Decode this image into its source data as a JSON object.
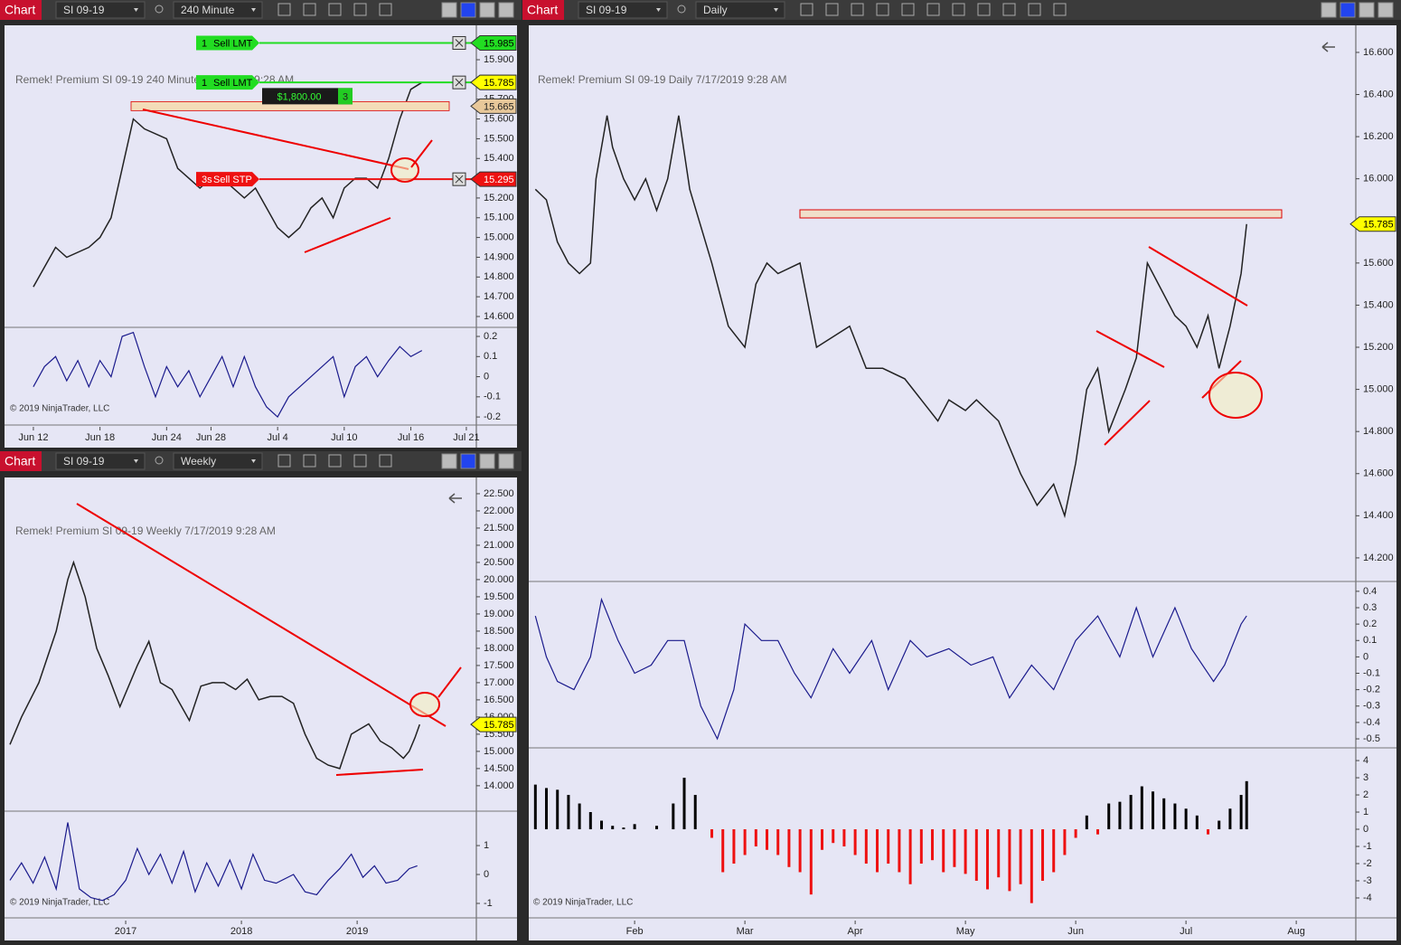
{
  "toolbars": [
    {
      "label": "Chart",
      "instrument": "SI 09-19",
      "interval": "240 Minute"
    },
    {
      "label": "Chart",
      "instrument": "SI 09-19",
      "interval": "Weekly"
    },
    {
      "label": "Chart",
      "instrument": "SI 09-19",
      "interval": "Daily"
    }
  ],
  "chart_data": [
    {
      "type": "line",
      "watermark": "Remek!  Premium  SI 09-19  240 Minute  7/17/2019 9:28 AM",
      "copyright": "© 2019 NinjaTrader, LLC",
      "color": "#222222",
      "x": [
        12,
        13,
        14,
        15,
        17,
        18,
        19,
        20,
        21,
        22,
        24,
        25,
        26,
        27,
        28,
        29,
        31,
        32,
        33,
        34,
        35,
        36,
        37,
        38,
        39,
        40,
        41,
        42,
        43,
        44,
        45,
        46,
        47
      ],
      "values": [
        14.75,
        14.85,
        14.95,
        14.9,
        14.95,
        15.0,
        15.1,
        15.35,
        15.6,
        15.55,
        15.5,
        15.35,
        15.3,
        15.25,
        15.3,
        15.3,
        15.2,
        15.25,
        15.15,
        15.05,
        15.0,
        15.05,
        15.15,
        15.2,
        15.1,
        15.25,
        15.3,
        15.3,
        15.25,
        15.4,
        15.6,
        15.75,
        15.785
      ],
      "xlim": [
        9.4,
        51.9
      ],
      "xticks": [
        {
          "value": 12,
          "label": "Jun 12"
        },
        {
          "value": 18,
          "label": "Jun 18"
        },
        {
          "value": 24,
          "label": "Jun 24"
        },
        {
          "value": 28,
          "label": "Jun 28"
        },
        {
          "value": 34,
          "label": "Jul 4"
        },
        {
          "value": 40,
          "label": "Jul 10"
        },
        {
          "value": 46,
          "label": "Jul 16"
        },
        {
          "value": 51,
          "label": "Jul 21"
        }
      ],
      "ylim": [
        14.545,
        16.065
      ],
      "yticks": [
        {
          "value": 14.6,
          "label": "14.600"
        },
        {
          "value": 14.7,
          "label": "14.700"
        },
        {
          "value": 14.8,
          "label": "14.800"
        },
        {
          "value": 14.9,
          "label": "14.900"
        },
        {
          "value": 15.0,
          "label": "15.000"
        },
        {
          "value": 15.1,
          "label": "15.100"
        },
        {
          "value": 15.2,
          "label": "15.200"
        },
        {
          "value": 15.3,
          "label": "15.300"
        },
        {
          "value": 15.4,
          "label": "15.400"
        },
        {
          "value": 15.5,
          "label": "15.500"
        },
        {
          "value": 15.6,
          "label": "15.600"
        },
        {
          "value": 15.7,
          "label": "15.700"
        },
        {
          "value": 15.8,
          "label": "15.800"
        },
        {
          "value": 15.9,
          "label": "15.900"
        }
      ],
      "orders": [
        {
          "qty": 1,
          "label": "Sell LMT",
          "price": 15.985,
          "color": "#22dd22"
        },
        {
          "qty": 1,
          "label": "Sell LMT",
          "price": 15.785,
          "color": "#22dd22"
        },
        {
          "qty": "3s",
          "label": "Sell STP",
          "price": 15.295,
          "color": "#ee1111"
        }
      ],
      "position": {
        "price": 15.665,
        "qty": 3,
        "pnl": {
          "value": 1800,
          "label": "$1,800.00"
        }
      },
      "last_price": 15.785,
      "oscillator": {
        "color": "#1a1a8c",
        "x": [
          12,
          13,
          14,
          15,
          16,
          17,
          18,
          19,
          20,
          21,
          22,
          23,
          24,
          25,
          26,
          27,
          28,
          29,
          30,
          31,
          32,
          33,
          34,
          35,
          36,
          37,
          38,
          39,
          40,
          41,
          42,
          43,
          44,
          45,
          46,
          47
        ],
        "values": [
          -0.05,
          0.05,
          0.1,
          -0.02,
          0.08,
          -0.05,
          0.08,
          0.0,
          0.2,
          0.22,
          0.05,
          -0.1,
          0.05,
          -0.05,
          0.03,
          -0.1,
          0.0,
          0.1,
          -0.05,
          0.1,
          -0.05,
          -0.15,
          -0.2,
          -0.1,
          -0.05,
          0.0,
          0.05,
          0.1,
          -0.1,
          0.05,
          0.1,
          0.0,
          0.08,
          0.15,
          0.1,
          0.13
        ],
        "ylim": [
          -0.24,
          0.245
        ],
        "yticks": [
          0.2,
          0.1,
          0,
          -0.1,
          -0.2
        ]
      }
    },
    {
      "type": "line",
      "watermark": "Remek!  Premium  SI 09-19  Weekly  7/17/2019 9:28 AM",
      "copyright": "© 2019 NinjaTrader, LLC",
      "color": "#222222",
      "x": [
        2016.0,
        2016.1,
        2016.25,
        2016.4,
        2016.5,
        2016.55,
        2016.65,
        2016.75,
        2016.85,
        2016.95,
        2017.1,
        2017.2,
        2017.3,
        2017.4,
        2017.5,
        2017.55,
        2017.65,
        2017.75,
        2017.85,
        2017.95,
        2018.05,
        2018.15,
        2018.25,
        2018.35,
        2018.45,
        2018.55,
        2018.65,
        2018.75,
        2018.85,
        2018.95,
        2019.1,
        2019.2,
        2019.3,
        2019.4,
        2019.45,
        2019.5,
        2019.54
      ],
      "values": [
        15.2,
        16.0,
        17.0,
        18.5,
        20.0,
        20.5,
        19.5,
        18.0,
        17.2,
        16.3,
        17.5,
        18.2,
        17.0,
        16.8,
        16.2,
        15.9,
        16.9,
        17.0,
        17.0,
        16.8,
        17.1,
        16.5,
        16.6,
        16.6,
        16.4,
        15.5,
        14.8,
        14.6,
        14.5,
        15.5,
        15.8,
        15.3,
        15.1,
        14.8,
        15.0,
        15.4,
        15.785
      ],
      "xlim": [
        2015.953,
        2020.03
      ],
      "xticks": [
        2017,
        2018,
        2019
      ],
      "ylim": [
        13.26,
        22.92
      ],
      "yticks": [
        {
          "value": 14,
          "label": "14.000"
        },
        {
          "value": 14.5,
          "label": "14.500"
        },
        {
          "value": 15,
          "label": "15.000"
        },
        {
          "value": 15.5,
          "label": "15.500"
        },
        {
          "value": 16,
          "label": "16.000"
        },
        {
          "value": 16.5,
          "label": "16.500"
        },
        {
          "value": 17,
          "label": "17.000"
        },
        {
          "value": 17.5,
          "label": "17.500"
        },
        {
          "value": 18,
          "label": "18.000"
        },
        {
          "value": 18.5,
          "label": "18.500"
        },
        {
          "value": 19,
          "label": "19.000"
        },
        {
          "value": 19.5,
          "label": "19.500"
        },
        {
          "value": 20,
          "label": "20.000"
        },
        {
          "value": 20.5,
          "label": "20.500"
        },
        {
          "value": 21,
          "label": "21.000"
        },
        {
          "value": 21.5,
          "label": "21.500"
        },
        {
          "value": 22,
          "label": "22.000"
        },
        {
          "value": 22.5,
          "label": "22.500"
        }
      ],
      "last_price": 15.785,
      "oscillator": {
        "color": "#1a1a8c",
        "x": [
          2016.0,
          2016.1,
          2016.2,
          2016.3,
          2016.4,
          2016.5,
          2016.6,
          2016.7,
          2016.8,
          2016.9,
          2017.0,
          2017.1,
          2017.2,
          2017.3,
          2017.4,
          2017.5,
          2017.6,
          2017.7,
          2017.8,
          2017.9,
          2018.0,
          2018.1,
          2018.2,
          2018.3,
          2018.45,
          2018.55,
          2018.65,
          2018.75,
          2018.85,
          2018.95,
          2019.05,
          2019.15,
          2019.25,
          2019.35,
          2019.45,
          2019.52
        ],
        "values": [
          -0.2,
          0.4,
          -0.3,
          0.6,
          -0.5,
          1.8,
          -0.5,
          -0.8,
          -0.9,
          -0.7,
          -0.2,
          0.9,
          0.0,
          0.7,
          -0.3,
          0.8,
          -0.6,
          0.4,
          -0.4,
          0.5,
          -0.5,
          0.7,
          -0.2,
          -0.3,
          0.0,
          -0.6,
          -0.7,
          -0.2,
          0.2,
          0.7,
          -0.1,
          0.3,
          -0.3,
          -0.2,
          0.2,
          0.3
        ],
        "ylim": [
          -1.5,
          2.19
        ],
        "yticks": [
          1,
          0,
          -1
        ]
      }
    },
    {
      "type": "line",
      "watermark": "Remek!  Premium  SI 09-19  Daily  7/17/2019 9:28 AM",
      "copyright": "© 2019 NinjaTrader, LLC",
      "color": "#222222",
      "x": [
        1.1,
        1.2,
        1.3,
        1.4,
        1.5,
        1.6,
        1.65,
        1.75,
        1.8,
        1.9,
        2.0,
        2.1,
        2.2,
        2.3,
        2.4,
        2.5,
        2.7,
        2.85,
        3.0,
        3.1,
        3.2,
        3.3,
        3.5,
        3.65,
        3.8,
        3.95,
        4.1,
        4.25,
        4.45,
        4.6,
        4.75,
        4.85,
        5.0,
        5.1,
        5.3,
        5.5,
        5.65,
        5.8,
        5.9,
        6.0,
        6.1,
        6.2,
        6.3,
        6.45,
        6.55,
        6.65,
        6.75,
        6.9,
        7.0,
        7.1,
        7.2,
        7.3,
        7.4,
        7.5,
        7.55
      ],
      "values": [
        15.95,
        15.9,
        15.7,
        15.6,
        15.55,
        15.6,
        16.0,
        16.3,
        16.15,
        16.0,
        15.9,
        16.0,
        15.85,
        16.0,
        16.3,
        15.95,
        15.6,
        15.3,
        15.2,
        15.5,
        15.6,
        15.55,
        15.6,
        15.2,
        15.25,
        15.3,
        15.1,
        15.1,
        15.05,
        14.95,
        14.85,
        14.95,
        14.9,
        14.95,
        14.85,
        14.6,
        14.45,
        14.55,
        14.4,
        14.65,
        15.0,
        15.1,
        14.8,
        15.0,
        15.15,
        15.6,
        15.5,
        15.35,
        15.3,
        15.2,
        15.35,
        15.1,
        15.3,
        15.55,
        15.785
      ],
      "xlim": [
        1.04,
        8.54
      ],
      "xticks": [
        {
          "value": 2,
          "label": "Feb"
        },
        {
          "value": 3,
          "label": "Mar"
        },
        {
          "value": 4,
          "label": "Apr"
        },
        {
          "value": 5,
          "label": "May"
        },
        {
          "value": 6,
          "label": "Jun"
        },
        {
          "value": 7,
          "label": "Jul"
        },
        {
          "value": 8,
          "label": "Aug"
        }
      ],
      "ylim": [
        14.088,
        16.72
      ],
      "yticks": [
        {
          "value": 14.2,
          "label": "14.200"
        },
        {
          "value": 14.4,
          "label": "14.400"
        },
        {
          "value": 14.6,
          "label": "14.600"
        },
        {
          "value": 14.8,
          "label": "14.800"
        },
        {
          "value": 15.0,
          "label": "15.000"
        },
        {
          "value": 15.2,
          "label": "15.200"
        },
        {
          "value": 15.4,
          "label": "15.400"
        },
        {
          "value": 15.6,
          "label": "15.600"
        },
        {
          "value": 15.8,
          "label": "15.800"
        },
        {
          "value": 16.0,
          "label": "16.000"
        },
        {
          "value": 16.2,
          "label": "16.200"
        },
        {
          "value": 16.4,
          "label": "16.400"
        },
        {
          "value": 16.6,
          "label": "16.600"
        }
      ],
      "last_price": 15.785,
      "oscillator": {
        "color": "#1a1a8c",
        "x": [
          1.1,
          1.2,
          1.3,
          1.45,
          1.6,
          1.7,
          1.85,
          2.0,
          2.15,
          2.3,
          2.45,
          2.6,
          2.75,
          2.9,
          3.0,
          3.15,
          3.3,
          3.45,
          3.6,
          3.8,
          3.95,
          4.15,
          4.3,
          4.5,
          4.65,
          4.85,
          5.05,
          5.25,
          5.4,
          5.6,
          5.8,
          6.0,
          6.2,
          6.4,
          6.55,
          6.7,
          6.9,
          7.05,
          7.25,
          7.35,
          7.5,
          7.55
        ],
        "values": [
          0.25,
          0.0,
          -0.15,
          -0.2,
          0.0,
          0.35,
          0.1,
          -0.1,
          -0.05,
          0.1,
          0.1,
          -0.3,
          -0.5,
          -0.2,
          0.2,
          0.1,
          0.1,
          -0.1,
          -0.25,
          0.05,
          -0.1,
          0.1,
          -0.2,
          0.1,
          0.0,
          0.05,
          -0.05,
          0.0,
          -0.25,
          -0.05,
          -0.2,
          0.1,
          0.25,
          0.0,
          0.3,
          0.0,
          0.3,
          0.05,
          -0.15,
          -0.05,
          0.2,
          0.25
        ],
        "ylim": [
          -0.555,
          0.46
        ],
        "yticks": [
          0.4,
          0.3,
          0.2,
          0.1,
          0,
          -0.1,
          -0.2,
          -0.3,
          -0.4,
          -0.5
        ]
      },
      "histogram": {
        "pos_color": "#000000",
        "neg_color": "#ee1111",
        "x": [
          1.1,
          1.2,
          1.3,
          1.4,
          1.5,
          1.6,
          1.7,
          1.8,
          1.9,
          2.0,
          2.2,
          2.35,
          2.45,
          2.55,
          2.7,
          2.8,
          2.9,
          3.0,
          3.1,
          3.2,
          3.3,
          3.4,
          3.5,
          3.6,
          3.7,
          3.8,
          3.9,
          4.0,
          4.1,
          4.2,
          4.3,
          4.4,
          4.5,
          4.6,
          4.7,
          4.8,
          4.9,
          5.0,
          5.1,
          5.2,
          5.3,
          5.4,
          5.5,
          5.6,
          5.7,
          5.8,
          5.9,
          6.0,
          6.1,
          6.2,
          6.3,
          6.4,
          6.5,
          6.6,
          6.7,
          6.8,
          6.9,
          7.0,
          7.1,
          7.2,
          7.3,
          7.4,
          7.5,
          7.55
        ],
        "values": [
          2.6,
          2.4,
          2.3,
          2.0,
          1.5,
          1.0,
          0.5,
          0.2,
          0.1,
          0.3,
          0.2,
          1.5,
          3.0,
          2.0,
          -0.5,
          -2.5,
          -2.0,
          -1.5,
          -1.0,
          -1.2,
          -1.5,
          -2.2,
          -2.5,
          -3.8,
          -1.2,
          -0.8,
          -1.0,
          -1.5,
          -2.0,
          -2.5,
          -2.0,
          -2.5,
          -3.2,
          -2.0,
          -1.8,
          -2.5,
          -2.2,
          -2.6,
          -3.0,
          -3.5,
          -2.8,
          -3.6,
          -3.2,
          -4.3,
          -3.0,
          -2.5,
          -1.5,
          -0.5,
          0.8,
          -0.3,
          1.5,
          1.6,
          2.0,
          2.5,
          2.2,
          1.8,
          1.5,
          1.2,
          0.8,
          -0.3,
          0.5,
          1.2,
          2.0,
          2.8
        ],
        "ylim": [
          -5.16,
          4.74
        ],
        "yticks": [
          4,
          3,
          2,
          1,
          0,
          -1,
          -2,
          -3,
          -4
        ]
      }
    }
  ]
}
